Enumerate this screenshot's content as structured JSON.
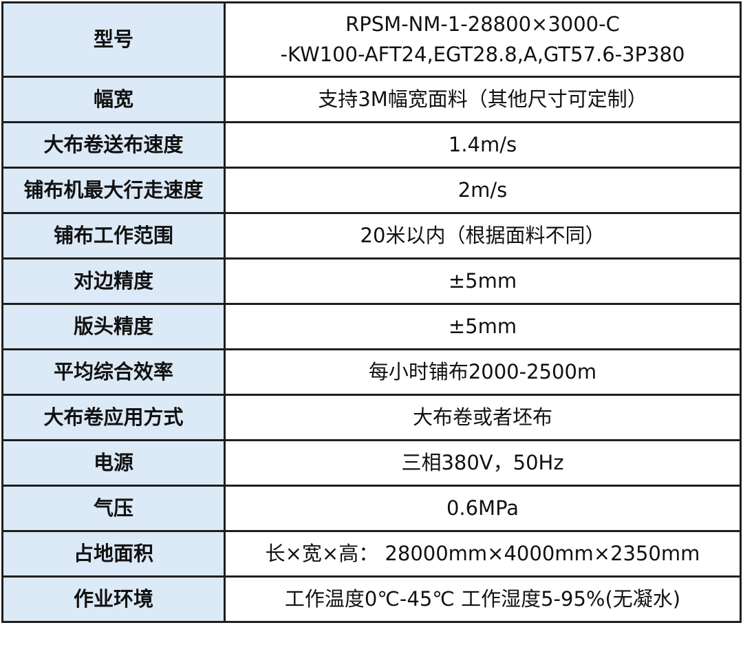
{
  "table": {
    "rows": [
      [
        "型号",
        [
          "RPSM-NM-1-28800×3000-C",
          "-KW100-AFT24,EGT28.8,A,GT57.6-3P380"
        ]
      ],
      [
        "幅宽",
        "支持3M幅宽面料（其他尺寸可定制）"
      ],
      [
        "大布卷送布速度",
        "1.4m/s"
      ],
      [
        "铺布机最大行走速度",
        "2m/s"
      ],
      [
        "铺布工作范围",
        "20米以内（根据面料不同）"
      ],
      [
        "对边精度",
        "±5mm"
      ],
      [
        "版头精度",
        "±5mm"
      ],
      [
        "平均综合效率",
        "每小时铺布2000-2500m"
      ],
      [
        "大布卷应用方式",
        "大布卷或者坯布"
      ],
      [
        "电源",
        "三相380V，50Hz"
      ],
      [
        "气压",
        "0.6MPa"
      ],
      [
        "占地面积",
        "长×宽×高： 28000mm×4000mm×2350mm"
      ],
      [
        "作业环境",
        "工作温度0℃-45℃ 工作湿度5-95%(无凝水)"
      ]
    ]
  }
}
